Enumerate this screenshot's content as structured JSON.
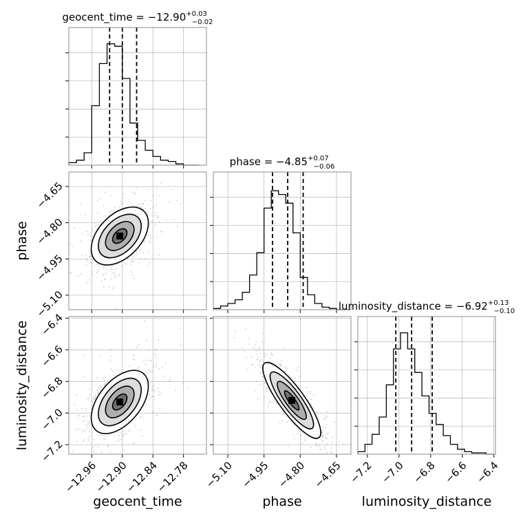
{
  "chart_data": {
    "type": "corner",
    "parameters": [
      {
        "name": "geocent_time",
        "title_main": "geocent_time = −12.90",
        "title_sup": "+0.03",
        "title_sub": "−0.02",
        "range": [
          -13.005,
          -12.735
        ],
        "ticks": [
          -12.96,
          -12.9,
          -12.84,
          -12.78
        ],
        "tick_labels": [
          "−12.96",
          "−12.90",
          "−12.84",
          "−12.78"
        ],
        "quantiles": [
          -12.925,
          -12.9,
          -12.872
        ],
        "histogram": {
          "bin_edges": [
            -13.005,
            -12.99,
            -12.975,
            -12.96,
            -12.945,
            -12.93,
            -12.915,
            -12.9,
            -12.885,
            -12.87,
            -12.855,
            -12.84,
            -12.825,
            -12.81,
            -12.795,
            -12.78,
            -12.765,
            -12.75
          ],
          "counts": [
            0.02,
            0.04,
            0.1,
            0.48,
            0.82,
            0.98,
            0.96,
            0.7,
            0.34,
            0.2,
            0.12,
            0.07,
            0.04,
            0.03,
            0.01,
            0.0,
            0.0
          ]
        }
      },
      {
        "name": "phase",
        "title_main": "phase = −4.85",
        "title_sup": "+0.07",
        "title_sub": "−0.06",
        "range": [
          -5.16,
          -4.59
        ],
        "ticks": [
          -5.1,
          -4.95,
          -4.8,
          -4.65
        ],
        "tick_labels": [
          "−5.10",
          "−4.95",
          "−4.80",
          "−4.65"
        ],
        "quantiles": [
          -4.915,
          -4.852,
          -4.788
        ],
        "histogram": {
          "bin_edges": [
            -5.16,
            -5.13,
            -5.1,
            -5.07,
            -5.04,
            -5.01,
            -4.98,
            -4.95,
            -4.92,
            -4.89,
            -4.86,
            -4.83,
            -4.8,
            -4.77,
            -4.74,
            -4.71,
            -4.68,
            -4.65,
            -4.62,
            -4.59
          ],
          "counts": [
            0.01,
            0.03,
            0.05,
            0.08,
            0.14,
            0.28,
            0.46,
            0.82,
            0.96,
            0.93,
            0.86,
            0.62,
            0.26,
            0.12,
            0.05,
            0.02,
            0.01,
            0.0,
            0.0
          ]
        }
      },
      {
        "name": "luminosity_distance",
        "title_main": "luminosity_distance = −6.92",
        "title_sup": "+0.13",
        "title_sub": "−0.10",
        "range": [
          -7.26,
          -6.39
        ],
        "ticks": [
          -7.2,
          -7.0,
          -6.8,
          -6.6,
          -6.4
        ],
        "tick_labels": [
          "−7.2",
          "−7.0",
          "−6.8",
          "−6.6",
          "−6.4"
        ],
        "quantiles": [
          -7.02,
          -6.92,
          -6.79
        ],
        "histogram": {
          "bin_edges": [
            -7.26,
            -7.215,
            -7.17,
            -7.125,
            -7.08,
            -7.035,
            -6.99,
            -6.945,
            -6.9,
            -6.855,
            -6.81,
            -6.765,
            -6.72,
            -6.675,
            -6.63,
            -6.585,
            -6.54,
            -6.495,
            -6.45,
            -6.405
          ],
          "counts": [
            0.02,
            0.08,
            0.16,
            0.3,
            0.56,
            0.85,
            0.98,
            0.85,
            0.66,
            0.47,
            0.33,
            0.24,
            0.15,
            0.08,
            0.04,
            0.02,
            0.01,
            0.01,
            0.0
          ]
        }
      }
    ],
    "axis_labels": {
      "y_row2": "phase",
      "y_row3": "luminosity_distance",
      "x_col1": "geocent_time",
      "x_col2": "phase",
      "x_col3": "luminosity_distance"
    },
    "pairs": [
      {
        "x": "geocent_time",
        "y": "phase",
        "peak": [
          -12.905,
          -4.855
        ],
        "sigma": [
          0.028,
          0.06
        ],
        "correlation": 0.45,
        "contour_levels": [
          0.5,
          1.0,
          1.5,
          2.0
        ]
      },
      {
        "x": "geocent_time",
        "y": "luminosity_distance",
        "peak": [
          -12.905,
          -6.93
        ],
        "sigma": [
          0.028,
          0.1
        ],
        "correlation": 0.5,
        "contour_levels": [
          0.5,
          1.0,
          1.5,
          2.0
        ]
      },
      {
        "x": "phase",
        "y": "luminosity_distance",
        "peak": [
          -4.835,
          -6.92
        ],
        "sigma": [
          0.06,
          0.12
        ],
        "correlation": -0.85,
        "contour_levels": [
          0.5,
          1.0,
          1.5,
          2.0
        ]
      }
    ],
    "grid": true,
    "colors": {
      "line": "#000000",
      "samples": "#9a9a9a",
      "grid": "#b0b0b0",
      "axes": "#888888"
    }
  }
}
